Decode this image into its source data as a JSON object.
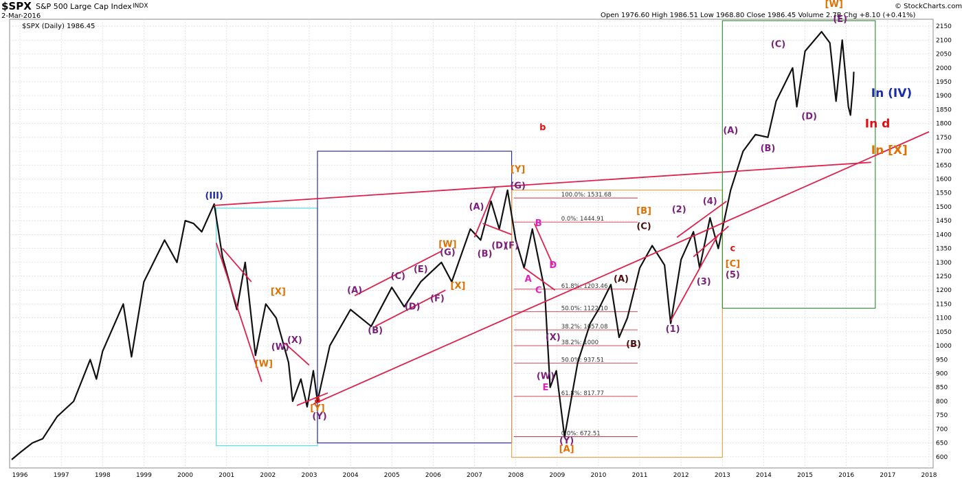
{
  "header": {
    "symbol": "$SPX",
    "name": "S&P 500 Large Cap Index",
    "exchange": "INDX",
    "date": "2-Mar-2016",
    "legend": "$SPX (Daily) 1986.45",
    "ohlc": "Open 1976.60   High 1986.51   Low 1968.80   Close 1986.45   Volume 2.7B   Chg +8.10 (+0.41%)",
    "credit": "© StockCharts.com"
  },
  "chart_data": {
    "type": "line",
    "title": "$SPX S&P 500 Large Cap Index INDX",
    "subtitle": "$SPX (Daily) 1986.45",
    "ylim": [
      560,
      2175
    ],
    "xlim": [
      1995.75,
      2018.1
    ],
    "y_ticks": [
      600,
      650,
      700,
      750,
      800,
      850,
      900,
      950,
      1000,
      1050,
      1100,
      1150,
      1200,
      1250,
      1300,
      1350,
      1400,
      1450,
      1500,
      1550,
      1600,
      1650,
      1700,
      1750,
      1800,
      1850,
      1900,
      1950,
      2000,
      2050,
      2100,
      2150
    ],
    "x_ticks": [
      "1996",
      "1997",
      "1998",
      "1999",
      "2000",
      "2001",
      "2002",
      "2003",
      "2004",
      "2005",
      "2006",
      "2007",
      "2008",
      "2009",
      "2010",
      "2011",
      "2012",
      "2013",
      "2014",
      "2015",
      "2016",
      "2017",
      "2018"
    ],
    "series": [
      {
        "values": [
          [
            1995.8,
            590
          ],
          [
            1996.0,
            615
          ],
          [
            1996.3,
            650
          ],
          [
            1996.55,
            665
          ],
          [
            1996.9,
            745
          ],
          [
            1997.3,
            800
          ],
          [
            1997.7,
            950
          ],
          [
            1997.85,
            880
          ],
          [
            1998.0,
            980
          ],
          [
            1998.5,
            1150
          ],
          [
            1998.7,
            960
          ],
          [
            1999.0,
            1230
          ],
          [
            1999.5,
            1380
          ],
          [
            1999.8,
            1300
          ],
          [
            2000.0,
            1450
          ],
          [
            2000.2,
            1440
          ],
          [
            2000.4,
            1410
          ],
          [
            2000.7,
            1510
          ],
          [
            2000.9,
            1320
          ],
          [
            2001.25,
            1130
          ],
          [
            2001.45,
            1300
          ],
          [
            2001.7,
            965
          ],
          [
            2001.95,
            1150
          ],
          [
            2002.2,
            1100
          ],
          [
            2002.5,
            940
          ],
          [
            2002.6,
            800
          ],
          [
            2002.8,
            880
          ],
          [
            2002.95,
            780
          ],
          [
            2003.1,
            910
          ],
          [
            2003.2,
            800
          ],
          [
            2003.5,
            1000
          ],
          [
            2004.0,
            1130
          ],
          [
            2004.5,
            1070
          ],
          [
            2005.0,
            1210
          ],
          [
            2005.3,
            1140
          ],
          [
            2005.7,
            1230
          ],
          [
            2006.2,
            1300
          ],
          [
            2006.45,
            1230
          ],
          [
            2006.9,
            1420
          ],
          [
            2007.15,
            1380
          ],
          [
            2007.4,
            1520
          ],
          [
            2007.6,
            1420
          ],
          [
            2007.8,
            1560
          ],
          [
            2008.0,
            1380
          ],
          [
            2008.2,
            1280
          ],
          [
            2008.4,
            1420
          ],
          [
            2008.7,
            1200
          ],
          [
            2008.83,
            850
          ],
          [
            2008.98,
            910
          ],
          [
            2009.18,
            672
          ],
          [
            2009.5,
            940
          ],
          [
            2009.8,
            1080
          ],
          [
            2010.0,
            1130
          ],
          [
            2010.3,
            1220
          ],
          [
            2010.5,
            1030
          ],
          [
            2010.7,
            1100
          ],
          [
            2011.0,
            1280
          ],
          [
            2011.3,
            1360
          ],
          [
            2011.6,
            1290
          ],
          [
            2011.75,
            1080
          ],
          [
            2012.0,
            1310
          ],
          [
            2012.3,
            1410
          ],
          [
            2012.45,
            1280
          ],
          [
            2012.7,
            1460
          ],
          [
            2012.9,
            1350
          ],
          [
            2013.2,
            1560
          ],
          [
            2013.5,
            1700
          ],
          [
            2013.8,
            1760
          ],
          [
            2014.1,
            1750
          ],
          [
            2014.3,
            1880
          ],
          [
            2014.7,
            2000
          ],
          [
            2014.8,
            1860
          ],
          [
            2015.0,
            2060
          ],
          [
            2015.4,
            2130
          ],
          [
            2015.6,
            2090
          ],
          [
            2015.75,
            1880
          ],
          [
            2015.9,
            2100
          ],
          [
            2016.05,
            1860
          ],
          [
            2016.1,
            1830
          ],
          [
            2016.17,
            1950
          ],
          [
            2016.18,
            1986
          ]
        ]
      }
    ],
    "annotations": [
      {
        "t": "(III)",
        "x": 2000.7,
        "y": 1530,
        "c": "#1a2aa8"
      },
      {
        "t": "[X]",
        "x": 2002.25,
        "y": 1185,
        "c": "#e07000"
      },
      {
        "t": "[W]",
        "x": 2001.9,
        "y": 925,
        "c": "#e07000"
      },
      {
        "t": "(W)",
        "x": 2002.3,
        "y": 985,
        "c": "#7a1f7a"
      },
      {
        "t": "(X)",
        "x": 2002.65,
        "y": 1010,
        "c": "#7a1f7a"
      },
      {
        "t": "a",
        "x": 2003.2,
        "y": 795,
        "c": "#e01010"
      },
      {
        "t": "[Y]",
        "x": 2003.2,
        "y": 765,
        "c": "#e07000"
      },
      {
        "t": "(Y)",
        "x": 2003.25,
        "y": 735,
        "c": "#7a1f7a"
      },
      {
        "t": "(A)",
        "x": 2004.1,
        "y": 1190,
        "c": "#7a1f7a"
      },
      {
        "t": "(B)",
        "x": 2004.6,
        "y": 1045,
        "c": "#7a1f7a"
      },
      {
        "t": "(C)",
        "x": 2005.15,
        "y": 1240,
        "c": "#7a1f7a"
      },
      {
        "t": "(D)",
        "x": 2005.5,
        "y": 1130,
        "c": "#7a1f7a"
      },
      {
        "t": "(E)",
        "x": 2005.7,
        "y": 1265,
        "c": "#7a1f7a"
      },
      {
        "t": "(F)",
        "x": 2006.1,
        "y": 1160,
        "c": "#7a1f7a"
      },
      {
        "t": "(G)",
        "x": 2006.35,
        "y": 1325,
        "c": "#7a1f7a"
      },
      {
        "t": "[W]",
        "x": 2006.35,
        "y": 1355,
        "c": "#e07000"
      },
      {
        "t": "[X]",
        "x": 2006.6,
        "y": 1205,
        "c": "#e07000"
      },
      {
        "t": "(A)",
        "x": 2007.05,
        "y": 1490,
        "c": "#7a1f7a"
      },
      {
        "t": "(B)",
        "x": 2007.25,
        "y": 1320,
        "c": "#7a1f7a"
      },
      {
        "t": "(D)",
        "x": 2007.6,
        "y": 1350,
        "c": "#7a1f7a"
      },
      {
        "t": "(F)",
        "x": 2007.9,
        "y": 1350,
        "c": "#7a1f7a"
      },
      {
        "t": "(G)",
        "x": 2008.05,
        "y": 1565,
        "c": "#7a1f7a"
      },
      {
        "t": "[Y]",
        "x": 2008.05,
        "y": 1625,
        "c": "#e07000"
      },
      {
        "t": "b",
        "x": 2008.65,
        "y": 1775,
        "c": "#e01010"
      },
      {
        "t": "B",
        "x": 2008.55,
        "y": 1430,
        "c": "#e020c0"
      },
      {
        "t": "D",
        "x": 2008.9,
        "y": 1280,
        "c": "#e020c0"
      },
      {
        "t": "A",
        "x": 2008.3,
        "y": 1230,
        "c": "#e020c0"
      },
      {
        "t": "C",
        "x": 2008.55,
        "y": 1190,
        "c": "#e020c0"
      },
      {
        "t": "(X)",
        "x": 2008.9,
        "y": 1020,
        "c": "#7a1f7a"
      },
      {
        "t": "(W)",
        "x": 2008.72,
        "y": 880,
        "c": "#7a1f7a"
      },
      {
        "t": "E",
        "x": 2008.72,
        "y": 840,
        "c": "#e020c0"
      },
      {
        "t": "(Y)",
        "x": 2009.23,
        "y": 648,
        "c": "#7a1f7a"
      },
      {
        "t": "[A]",
        "x": 2009.23,
        "y": 618,
        "c": "#e07000"
      },
      {
        "t": "(A)",
        "x": 2010.55,
        "y": 1230,
        "c": "#4a1010"
      },
      {
        "t": "(B)",
        "x": 2010.85,
        "y": 995,
        "c": "#4a1010"
      },
      {
        "t": "[B]",
        "x": 2011.1,
        "y": 1475,
        "c": "#e07000"
      },
      {
        "t": "(C)",
        "x": 2011.1,
        "y": 1420,
        "c": "#4a1010"
      },
      {
        "t": "(1)",
        "x": 2011.8,
        "y": 1050,
        "c": "#7a1f7a"
      },
      {
        "t": "(2)",
        "x": 2011.95,
        "y": 1480,
        "c": "#7a1f7a"
      },
      {
        "t": "(3)",
        "x": 2012.55,
        "y": 1220,
        "c": "#7a1f7a"
      },
      {
        "t": "(4)",
        "x": 2012.7,
        "y": 1510,
        "c": "#7a1f7a"
      },
      {
        "t": "c",
        "x": 2013.25,
        "y": 1340,
        "c": "#e01010"
      },
      {
        "t": "[C]",
        "x": 2013.25,
        "y": 1285,
        "c": "#e07000"
      },
      {
        "t": "(5)",
        "x": 2013.25,
        "y": 1245,
        "c": "#7a1f7a"
      },
      {
        "t": "(A)",
        "x": 2013.2,
        "y": 1765,
        "c": "#7a1f7a"
      },
      {
        "t": "(B)",
        "x": 2014.1,
        "y": 1700,
        "c": "#7a1f7a"
      },
      {
        "t": "(C)",
        "x": 2014.35,
        "y": 2075,
        "c": "#7a1f7a"
      },
      {
        "t": "(D)",
        "x": 2015.1,
        "y": 1815,
        "c": "#7a1f7a"
      },
      {
        "t": "(E)",
        "x": 2015.85,
        "y": 2165,
        "c": "#7a1f7a"
      },
      {
        "t": "[W]",
        "x": 2015.7,
        "y": 2220,
        "c": "#e07000"
      },
      {
        "t": "In (IV)",
        "x": 2016.6,
        "y": 1895,
        "c": "#1a2aa8",
        "big": 1
      },
      {
        "t": "In d",
        "x": 2016.45,
        "y": 1785,
        "c": "#e01010",
        "big": 1
      },
      {
        "t": "In [X]",
        "x": 2016.6,
        "y": 1690,
        "c": "#e07000",
        "big": 1
      }
    ],
    "fib_levels": [
      {
        "t": "100.0%: 1531.68",
        "v": 1531.68
      },
      {
        "t": "0.0%: 1444.91",
        "v": 1444.91
      },
      {
        "t": "61.8%: 1203.46",
        "v": 1203.46
      },
      {
        "t": "50.0%: 1122.10",
        "v": 1122.1
      },
      {
        "t": "38.2%: 1057.08",
        "v": 1057.08
      },
      {
        "t": "38.2%: 1000",
        "v": 1000
      },
      {
        "t": "50.0%: 937.51",
        "v": 937.51
      },
      {
        "t": "61.8%: 817.77",
        "v": 817.77
      },
      {
        "t": "0.0%: 672.51",
        "v": 672.51
      }
    ],
    "trendlines": [
      [
        2000.7,
        1505,
        2016.6,
        1660
      ],
      [
        2003.1,
        790,
        2018.0,
        1770
      ],
      [
        2000.75,
        1370,
        2001.85,
        870
      ],
      [
        2000.9,
        1350,
        2001.6,
        1230
      ],
      [
        2002.4,
        1010,
        2003.0,
        930
      ],
      [
        2002.7,
        785,
        2003.45,
        830
      ],
      [
        2004.1,
        1180,
        2006.2,
        1340
      ],
      [
        2004.6,
        1070,
        2006.3,
        1200
      ],
      [
        2007.0,
        1390,
        2007.5,
        1570
      ],
      [
        2007.2,
        1440,
        2007.9,
        1400
      ],
      [
        2008.2,
        1280,
        2008.95,
        1200
      ],
      [
        2008.45,
        1440,
        2008.9,
        1290
      ],
      [
        2011.75,
        1090,
        2012.9,
        1400
      ],
      [
        2011.9,
        1390,
        2013.1,
        1520
      ],
      [
        2012.3,
        1320,
        2013.15,
        1430
      ]
    ],
    "boxes": [
      {
        "x0": 2000.75,
        "x1": 2003.2,
        "y0": 640,
        "y1": 1495,
        "c": "#48d8e0"
      },
      {
        "x0": 2003.2,
        "x1": 2007.9,
        "y0": 650,
        "y1": 1700,
        "c": "#1a1a90"
      },
      {
        "x0": 2007.9,
        "x1": 2013.0,
        "y0": 598,
        "y1": 1560,
        "c": "#e0a040"
      },
      {
        "x0": 2013.0,
        "x1": 2016.7,
        "y0": 1135,
        "y1": 2170,
        "c": "#2a8a2a"
      }
    ]
  }
}
